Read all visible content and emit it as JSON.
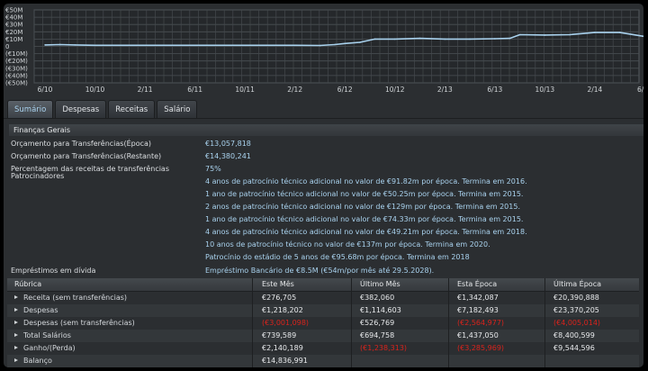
{
  "chart_data": {
    "type": "line",
    "yticks": [
      "€50M",
      "€40M",
      "€30M",
      "€20M",
      "€10M",
      "0",
      "(€10M)",
      "(€20M)",
      "(€30M)",
      "(€40M)",
      "(€50M)"
    ],
    "xticks": [
      "6/10",
      "10/10",
      "2/11",
      "6/11",
      "10/11",
      "2/12",
      "6/12",
      "10/12",
      "2/13",
      "6/13",
      "10/13",
      "2/14",
      "6/14"
    ],
    "ylim": [
      -50,
      50
    ],
    "series": [
      {
        "x": [
          0,
          0.3,
          0.6,
          1.0,
          1.5,
          2.0,
          3.0,
          4.0,
          5.0,
          5.5,
          5.8,
          6.0,
          6.3,
          6.6,
          7.0,
          7.5,
          8.0,
          8.5,
          9.0,
          9.3,
          9.5,
          10.0,
          10.5,
          11.0,
          11.5,
          12.0
        ],
        "y": [
          2,
          2.5,
          2,
          1.5,
          1.5,
          1.5,
          1.5,
          1.5,
          1.5,
          1.2,
          2.5,
          4,
          5.5,
          10,
          10,
          11,
          10,
          10,
          10.5,
          11,
          16,
          15.5,
          16,
          19,
          19,
          13.5
        ],
        "color": "#a9d2ee"
      }
    ]
  },
  "tabs": [
    {
      "label": "Sumário"
    },
    {
      "label": "Despesas"
    },
    {
      "label": "Receitas"
    },
    {
      "label": "Salário"
    }
  ],
  "finance": {
    "title": "Finanças Gerais",
    "rows": [
      {
        "label": "Orçamento para Transferências(Época)",
        "value": "€13,057,818"
      },
      {
        "label": "Orçamento para Transferências(Restante)",
        "value": "€14,380,241"
      },
      {
        "label": "Percentagem das receitas de transferências",
        "value": "75%"
      },
      {
        "label": "Patrocinadores",
        "value": "4 anos de patrocínio técnico adicional no valor de €91.82m por época. Termina em 2016."
      },
      {
        "label": "",
        "value": "1 ano de patrocínio técnico adicional no valor de €50.25m por época. Termina em 2015."
      },
      {
        "label": "",
        "value": "2 anos de patrocínio técnico adicional no valor de €129m por época. Termina em 2015."
      },
      {
        "label": "",
        "value": "1 ano de patrocínio técnico adicional no valor de €74.33m por época. Termina em 2015."
      },
      {
        "label": "",
        "value": "4 anos de patrocínio técnico adicional no valor de €49.21m por época. Termina em 2018."
      },
      {
        "label": "",
        "value": "10 anos de patrocínio técnico no valor de €137m por época. Termina em 2020."
      },
      {
        "label": "",
        "value": "Patrocínio do estádio de 5 anos de €95.68m por época. Termina em 2018"
      },
      {
        "label": "Empréstimos em dívida",
        "value": "Empréstimo Bancário de €8.5M (€54m/por mês até 29.5.2028)."
      }
    ]
  },
  "table": {
    "headers": [
      "Rúbrica",
      "Este Mês",
      "Último Mês",
      "Esta Época",
      "Última Época"
    ],
    "rows": [
      {
        "label": "Receita (sem transferências)",
        "cells": [
          "€276,705",
          "€382,060",
          "€1,342,087",
          "€20,390,888"
        ],
        "neg": [
          false,
          false,
          false,
          false
        ]
      },
      {
        "label": "Despesas",
        "cells": [
          "€1,218,202",
          "€1,114,603",
          "€7,182,493",
          "€23,370,205"
        ],
        "neg": [
          false,
          false,
          false,
          false
        ]
      },
      {
        "label": "Despesas (sem transferências)",
        "cells": [
          "(€3,001,098)",
          "€526,769",
          "(€2,564,977)",
          "(€4,005,014)"
        ],
        "neg": [
          true,
          false,
          true,
          true
        ]
      },
      {
        "label": "Total Salários",
        "cells": [
          "€739,589",
          "€694,758",
          "€1,437,050",
          "€8,400,599"
        ],
        "neg": [
          false,
          false,
          false,
          false
        ]
      },
      {
        "label": "Ganho/(Perda)",
        "cells": [
          "€2,140,189",
          "(€1,238,313)",
          "(€3,285,969)",
          "€9,544,596"
        ],
        "neg": [
          false,
          true,
          true,
          false
        ]
      },
      {
        "label": "Balanço",
        "cells": [
          "€14,836,991",
          "",
          "",
          ""
        ],
        "neg": [
          false,
          false,
          false,
          false
        ]
      }
    ]
  },
  "colors": {
    "accent": "#a9d2ee",
    "negative": "#d9231c",
    "panel": "#2b2e31"
  }
}
